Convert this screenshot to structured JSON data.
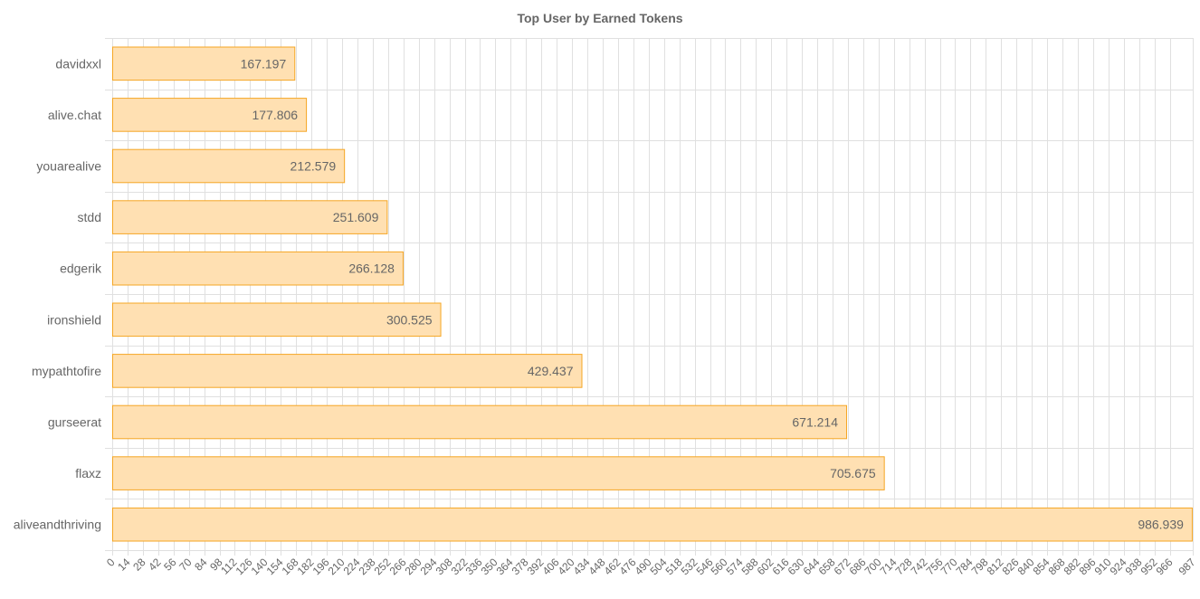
{
  "chart_data": {
    "type": "bar",
    "orientation": "horizontal",
    "title": "Top User by Earned Tokens",
    "xlabel": "",
    "ylabel": "",
    "categories": [
      "davidxxl",
      "alive.chat",
      "youarealive",
      "stdd",
      "edgerik",
      "ironshield",
      "mypathtofire",
      "gurseerat",
      "flaxz",
      "aliveandthriving"
    ],
    "values": [
      167.197,
      177.806,
      212.579,
      251.609,
      266.128,
      300.525,
      429.437,
      671.214,
      705.675,
      986.939
    ],
    "value_labels": [
      "167.197",
      "177.806",
      "212.579",
      "251.609",
      "266.128",
      "300.525",
      "429.437",
      "671.214",
      "705.675",
      "986.939"
    ],
    "xlim": [
      0,
      987
    ],
    "x_ticks": [
      0,
      14,
      28,
      42,
      56,
      70,
      84,
      98,
      112,
      126,
      140,
      154,
      168,
      182,
      196,
      210,
      224,
      238,
      252,
      266,
      280,
      294,
      308,
      322,
      336,
      350,
      364,
      378,
      392,
      406,
      420,
      434,
      448,
      462,
      476,
      490,
      504,
      518,
      532,
      546,
      560,
      574,
      588,
      602,
      616,
      630,
      644,
      658,
      672,
      686,
      700,
      714,
      728,
      742,
      756,
      770,
      784,
      798,
      812,
      826,
      840,
      854,
      868,
      882,
      896,
      910,
      924,
      938,
      952,
      966,
      987
    ],
    "grid": true,
    "legend": "none",
    "colors": {
      "bar_fill": "#ffe0b2",
      "bar_stroke": "#f5a623",
      "grid": "#e0e0e0",
      "text": "#666666"
    }
  }
}
